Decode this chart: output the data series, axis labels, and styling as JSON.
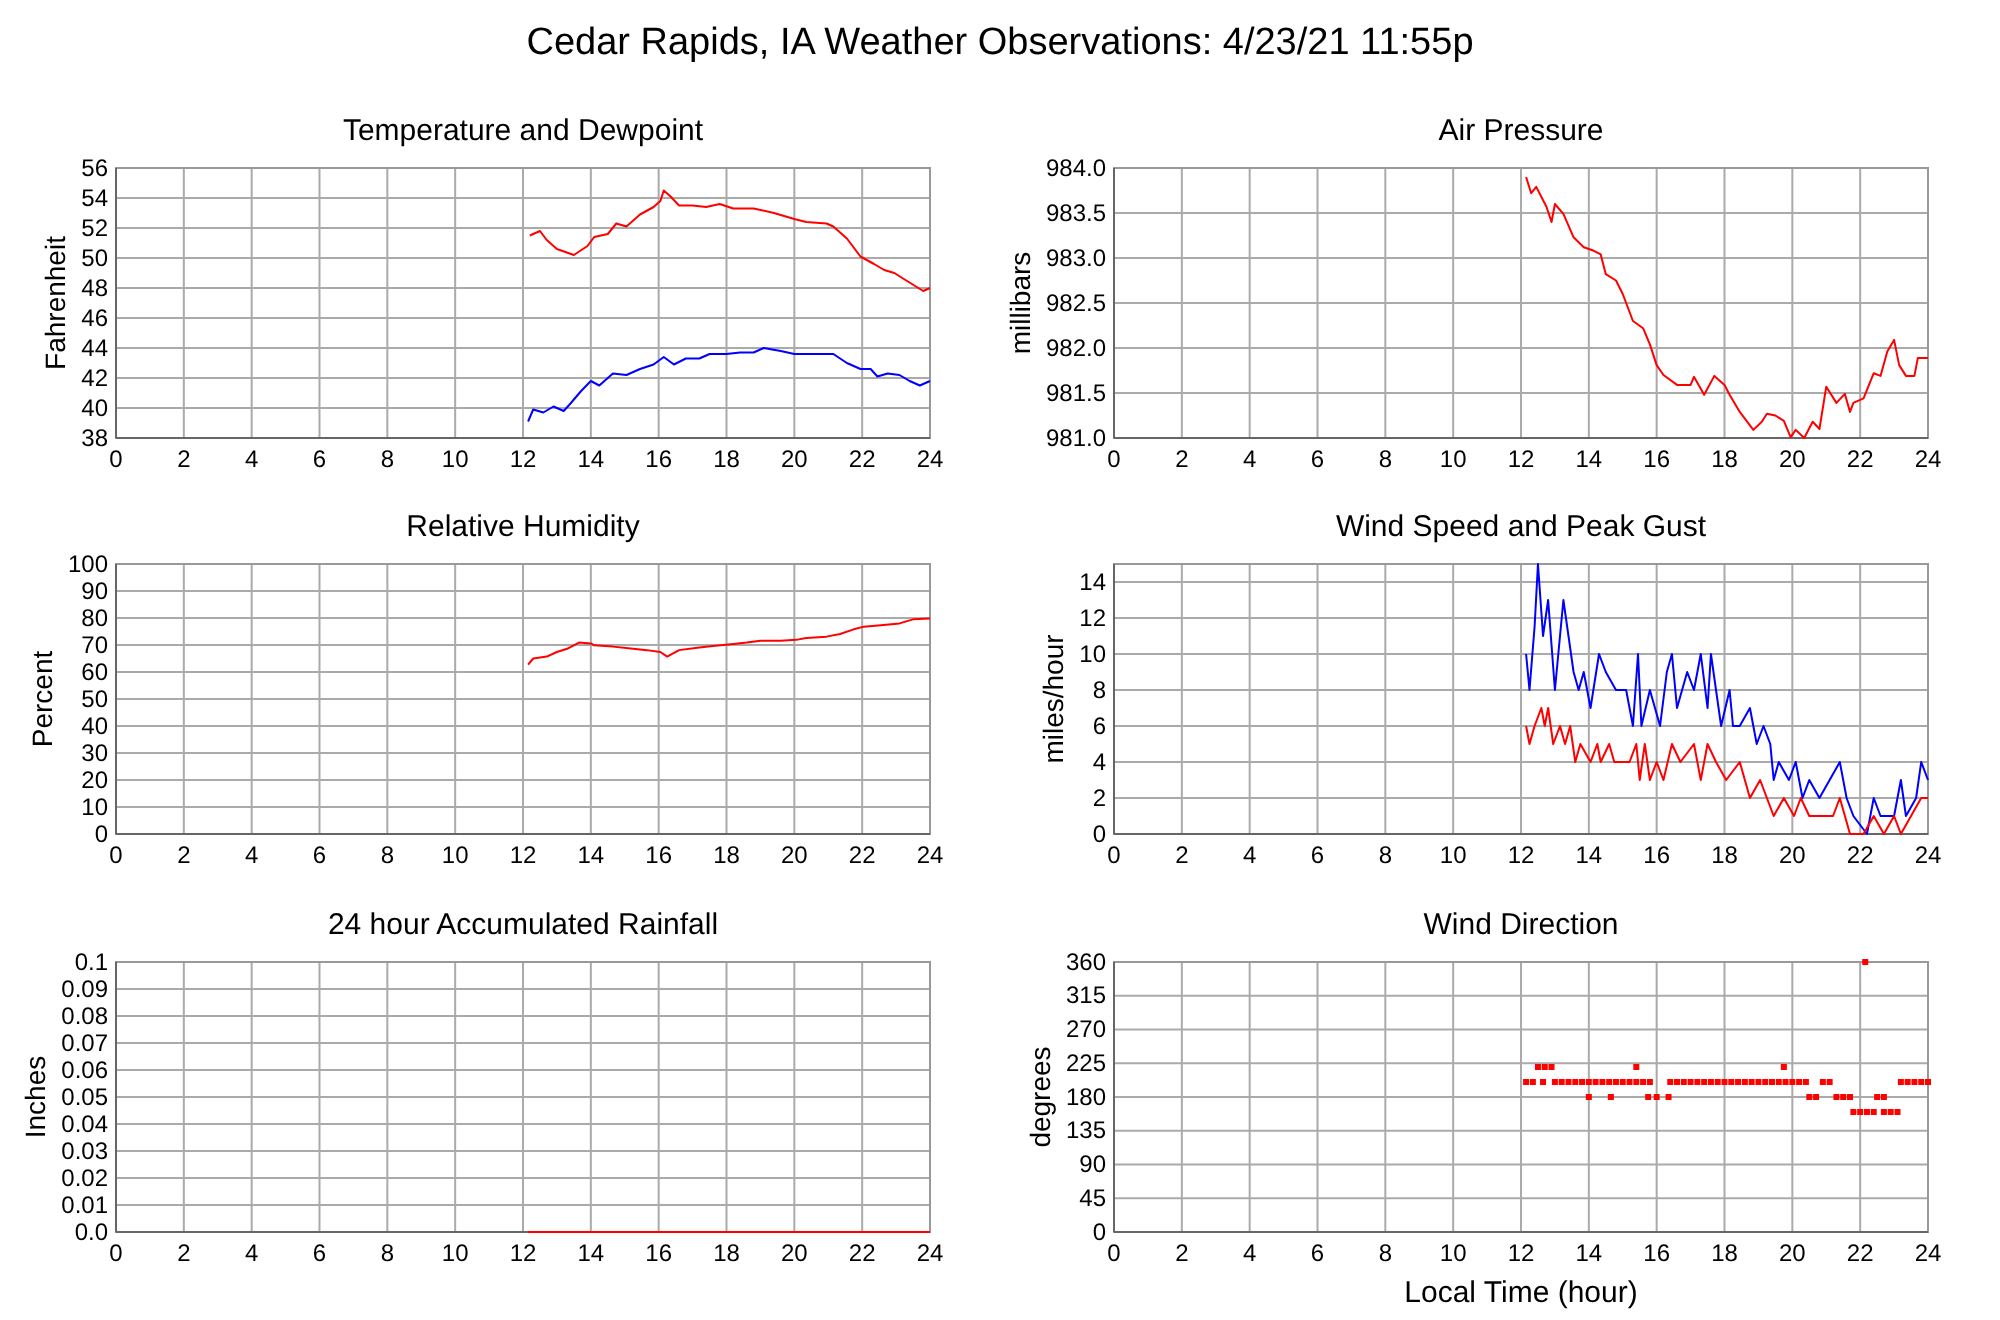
{
  "chart_data": [
    {
      "type": "other",
      "title": "Cedar Rapids, IA Weather Observations: 4/23/21 11:55p"
    },
    {
      "type": "line",
      "title": "Temperature and Dewpoint",
      "ylabel": "Fahrenheit",
      "xlim": [
        0,
        24
      ],
      "xticks": [
        0,
        2,
        4,
        6,
        8,
        10,
        12,
        14,
        16,
        18,
        20,
        22,
        24
      ],
      "ylim": [
        38,
        56
      ],
      "yticks": [
        38,
        40,
        42,
        44,
        46,
        48,
        50,
        52,
        54,
        56
      ],
      "grid": true,
      "series": [
        {
          "color": "#ff0000",
          "x": [
            12.2,
            12.5,
            12.7,
            13.0,
            13.5,
            13.9,
            14.1,
            14.5,
            14.75,
            15.05,
            15.45,
            15.85,
            16.05,
            16.15,
            16.35,
            16.6,
            17.0,
            17.4,
            17.8,
            18.2,
            18.8,
            19.4,
            20.0,
            20.35,
            20.95,
            21.15,
            21.55,
            21.95,
            22.35,
            22.65,
            22.95,
            23.3,
            23.8,
            24.0
          ],
          "values": [
            51.5,
            51.8,
            51.2,
            50.6,
            50.2,
            50.8,
            51.4,
            51.6,
            52.3,
            52.1,
            52.9,
            53.4,
            53.8,
            54.5,
            54.1,
            53.5,
            53.5,
            53.4,
            53.6,
            53.3,
            53.3,
            53.0,
            52.6,
            52.4,
            52.3,
            52.1,
            51.3,
            50.1,
            49.6,
            49.2,
            49.0,
            48.5,
            47.8,
            48.0
          ]
        },
        {
          "color": "#0000ff",
          "x": [
            12.15,
            12.3,
            12.6,
            12.9,
            13.2,
            13.4,
            13.7,
            14.0,
            14.25,
            14.65,
            15.05,
            15.45,
            15.85,
            16.15,
            16.45,
            16.8,
            17.2,
            17.5,
            18.0,
            18.4,
            18.8,
            19.1,
            19.6,
            20.0,
            20.35,
            20.8,
            21.15,
            21.55,
            21.95,
            22.25,
            22.45,
            22.75,
            23.1,
            23.4,
            23.7,
            24.0
          ],
          "values": [
            39.1,
            39.9,
            39.7,
            40.1,
            39.8,
            40.3,
            41.1,
            41.8,
            41.5,
            42.3,
            42.2,
            42.6,
            42.9,
            43.4,
            42.9,
            43.3,
            43.3,
            43.6,
            43.6,
            43.7,
            43.7,
            44.0,
            43.8,
            43.6,
            43.6,
            43.6,
            43.6,
            43.0,
            42.6,
            42.6,
            42.1,
            42.3,
            42.2,
            41.8,
            41.5,
            41.8
          ]
        }
      ]
    },
    {
      "type": "line",
      "title": "Air Pressure",
      "ylabel": "millibars",
      "xlim": [
        0,
        24
      ],
      "xticks": [
        0,
        2,
        4,
        6,
        8,
        10,
        12,
        14,
        16,
        18,
        20,
        22,
        24
      ],
      "ylim": [
        981,
        984
      ],
      "yticks": [
        {
          "value": 981,
          "label": "981.0"
        },
        981.5,
        {
          "value": 982,
          "label": "982.0"
        },
        982.5,
        {
          "value": 983,
          "label": "983.0"
        },
        983.5,
        {
          "value": 984,
          "label": "984.0"
        }
      ],
      "grid": true,
      "series": [
        {
          "color": "#ff0000",
          "x": [
            12.15,
            12.3,
            12.45,
            12.75,
            12.9,
            13.0,
            13.25,
            13.55,
            13.85,
            14.15,
            14.35,
            14.5,
            14.8,
            15.0,
            15.3,
            15.6,
            15.8,
            16.0,
            16.2,
            16.6,
            17.0,
            17.1,
            17.4,
            17.7,
            18.0,
            18.15,
            18.45,
            18.85,
            19.1,
            19.25,
            19.5,
            19.75,
            19.95,
            20.1,
            20.35,
            20.6,
            20.8,
            21.0,
            21.3,
            21.55,
            21.7,
            21.8,
            22.1,
            22.4,
            22.6,
            22.8,
            23.0,
            23.15,
            23.35,
            23.6,
            23.7,
            24.0
          ],
          "values": [
            983.9,
            983.72,
            983.79,
            983.57,
            983.4,
            983.6,
            983.49,
            983.23,
            983.12,
            983.08,
            983.04,
            982.82,
            982.75,
            982.6,
            982.3,
            982.22,
            982.04,
            981.81,
            981.7,
            981.59,
            981.59,
            981.68,
            981.48,
            981.69,
            981.59,
            981.48,
            981.29,
            981.09,
            981.18,
            981.27,
            981.25,
            981.19,
            981.01,
            981.09,
            981.0,
            981.18,
            981.1,
            981.57,
            981.39,
            981.49,
            981.29,
            981.39,
            981.44,
            981.72,
            981.69,
            981.96,
            982.09,
            981.81,
            981.69,
            981.69,
            981.89,
            981.89
          ]
        }
      ]
    },
    {
      "type": "line",
      "title": "Relative Humidity",
      "ylabel": "Percent",
      "xlim": [
        0,
        24
      ],
      "xticks": [
        0,
        2,
        4,
        6,
        8,
        10,
        12,
        14,
        16,
        18,
        20,
        22,
        24
      ],
      "ylim": [
        0,
        100
      ],
      "yticks": [
        0,
        10,
        20,
        30,
        40,
        50,
        60,
        70,
        80,
        90,
        100
      ],
      "grid": true,
      "series": [
        {
          "color": "#ff0000",
          "x": [
            12.15,
            12.3,
            12.7,
            13.0,
            13.3,
            13.65,
            14.0,
            14.1,
            14.65,
            15.25,
            15.65,
            16.05,
            16.25,
            16.6,
            17.2,
            17.6,
            18.2,
            18.6,
            19.0,
            19.6,
            20.05,
            20.35,
            20.95,
            21.35,
            21.75,
            22.05,
            22.55,
            23.1,
            23.5,
            24.0
          ],
          "values": [
            62.7,
            65.0,
            65.7,
            67.4,
            68.6,
            70.9,
            70.6,
            69.9,
            69.4,
            68.6,
            68.1,
            67.4,
            65.7,
            68.1,
            69.1,
            69.6,
            70.4,
            70.9,
            71.6,
            71.6,
            71.9,
            72.6,
            73.1,
            74.1,
            75.8,
            76.8,
            77.3,
            78.0,
            79.5,
            79.8
          ]
        }
      ]
    },
    {
      "type": "line",
      "title": "Wind Speed and Peak Gust",
      "ylabel": "miles/hour",
      "xlim": [
        0,
        24
      ],
      "xticks": [
        0,
        2,
        4,
        6,
        8,
        10,
        12,
        14,
        16,
        18,
        20,
        22,
        24
      ],
      "ylim": [
        0,
        15
      ],
      "yticks": [
        0,
        2,
        4,
        6,
        8,
        10,
        12,
        14
      ],
      "grid": true,
      "series": [
        {
          "color": "#0000ff",
          "x": [
            12.15,
            12.25,
            12.4,
            12.5,
            12.65,
            12.8,
            13.0,
            13.25,
            13.55,
            13.7,
            13.85,
            14.05,
            14.3,
            14.5,
            14.8,
            15.1,
            15.3,
            15.45,
            15.55,
            15.8,
            16.1,
            16.3,
            16.45,
            16.6,
            16.9,
            17.1,
            17.3,
            17.5,
            17.6,
            17.9,
            18.15,
            18.25,
            18.45,
            18.75,
            18.95,
            19.15,
            19.35,
            19.45,
            19.6,
            19.9,
            20.1,
            20.3,
            20.5,
            20.8,
            21.1,
            21.4,
            21.6,
            21.8,
            22.2,
            22.4,
            22.6,
            23.0,
            23.2,
            23.35,
            23.65,
            23.8,
            24.0
          ],
          "values": [
            10,
            8,
            11.5,
            15,
            11,
            13,
            8,
            13,
            9,
            8,
            9,
            7,
            10,
            9,
            8,
            8,
            6,
            10,
            6,
            8,
            6,
            9,
            10,
            7,
            9,
            8,
            10,
            7,
            10,
            6,
            8,
            6,
            6,
            7,
            5,
            6,
            5,
            3,
            4,
            3,
            4,
            2,
            3,
            2,
            3,
            4,
            2,
            1,
            0,
            2,
            1,
            1,
            3,
            1,
            2,
            4,
            3
          ]
        },
        {
          "color": "#ff0000",
          "x": [
            12.15,
            12.25,
            12.4,
            12.6,
            12.7,
            12.8,
            12.95,
            13.15,
            13.3,
            13.45,
            13.6,
            13.75,
            14.05,
            14.25,
            14.35,
            14.6,
            14.75,
            15.2,
            15.4,
            15.5,
            15.65,
            15.8,
            16.0,
            16.2,
            16.45,
            16.7,
            17.1,
            17.3,
            17.5,
            17.75,
            18.05,
            18.45,
            18.75,
            19.05,
            19.25,
            19.45,
            19.75,
            20.05,
            20.25,
            20.5,
            21.2,
            21.4,
            21.7,
            22.1,
            22.4,
            22.7,
            23.0,
            23.2,
            23.5,
            23.8,
            24.0
          ],
          "values": [
            6,
            5,
            6,
            7,
            6,
            7,
            5,
            6,
            5,
            6,
            4,
            5,
            4,
            5,
            4,
            5,
            4,
            4,
            5,
            3,
            5,
            3,
            4,
            3,
            5,
            4,
            5,
            3,
            5,
            4,
            3,
            4,
            2,
            3,
            2,
            1,
            2,
            1,
            2,
            1,
            1,
            2,
            0,
            0,
            1,
            0,
            1,
            0,
            1,
            2,
            2
          ]
        }
      ]
    },
    {
      "type": "line",
      "title": "24 hour Accumulated Rainfall",
      "ylabel": "Inches",
      "xlim": [
        0,
        24
      ],
      "xticks": [
        0,
        2,
        4,
        6,
        8,
        10,
        12,
        14,
        16,
        18,
        20,
        22,
        24
      ],
      "ylim": [
        0,
        0.1
      ],
      "yticks": [
        {
          "value": 0,
          "label": "0.0"
        },
        0.01,
        0.02,
        0.03,
        0.04,
        0.05,
        0.06,
        0.07,
        0.08,
        0.09,
        0.1
      ],
      "grid": true,
      "series": [
        {
          "color": "#ff0000",
          "x": [
            12.15,
            24.0
          ],
          "values": [
            0,
            0
          ]
        }
      ]
    },
    {
      "type": "scatter",
      "title": "Wind Direction",
      "ylabel": "degrees",
      "xlabel": "Local Time (hour)",
      "marker": "square",
      "xlim": [
        0,
        24
      ],
      "xticks": [
        0,
        2,
        4,
        6,
        8,
        10,
        12,
        14,
        16,
        18,
        20,
        22,
        24
      ],
      "ylim": [
        0,
        360
      ],
      "yticks": [
        0,
        45,
        90,
        135,
        180,
        225,
        270,
        315,
        360
      ],
      "grid": true,
      "series": [
        {
          "color": "#ff0000",
          "x": [
            12.15,
            12.35,
            12.5,
            12.65,
            12.7,
            12.9,
            13.0,
            13.2,
            13.4,
            13.6,
            13.8,
            14.0,
            14.0,
            14.2,
            14.4,
            14.6,
            14.65,
            14.8,
            15.0,
            15.2,
            15.4,
            15.4,
            15.6,
            15.75,
            15.8,
            16.0,
            16.35,
            16.4,
            16.6,
            16.8,
            17.0,
            17.2,
            17.4,
            17.6,
            17.8,
            18.0,
            18.2,
            18.4,
            18.6,
            18.8,
            19.0,
            19.2,
            19.4,
            19.6,
            19.75,
            19.8,
            20.0,
            20.2,
            20.4,
            20.5,
            20.7,
            20.9,
            21.1,
            21.3,
            21.5,
            21.7,
            21.8,
            22.0,
            22.15,
            22.2,
            22.4,
            22.5,
            22.7,
            22.7,
            22.9,
            23.1,
            23.2,
            23.4,
            23.6,
            23.8,
            24.0
          ],
          "values": [
            200,
            200,
            220,
            200,
            220,
            220,
            200,
            200,
            200,
            200,
            200,
            200,
            180,
            200,
            200,
            200,
            180,
            200,
            200,
            200,
            200,
            220,
            200,
            180,
            200,
            180,
            180,
            200,
            200,
            200,
            200,
            200,
            200,
            200,
            200,
            200,
            200,
            200,
            200,
            200,
            200,
            200,
            200,
            200,
            220,
            200,
            200,
            200,
            200,
            180,
            180,
            200,
            200,
            180,
            180,
            180,
            160,
            160,
            360,
            160,
            160,
            180,
            180,
            160,
            160,
            160,
            200,
            200,
            200,
            200,
            200
          ]
        }
      ]
    }
  ]
}
